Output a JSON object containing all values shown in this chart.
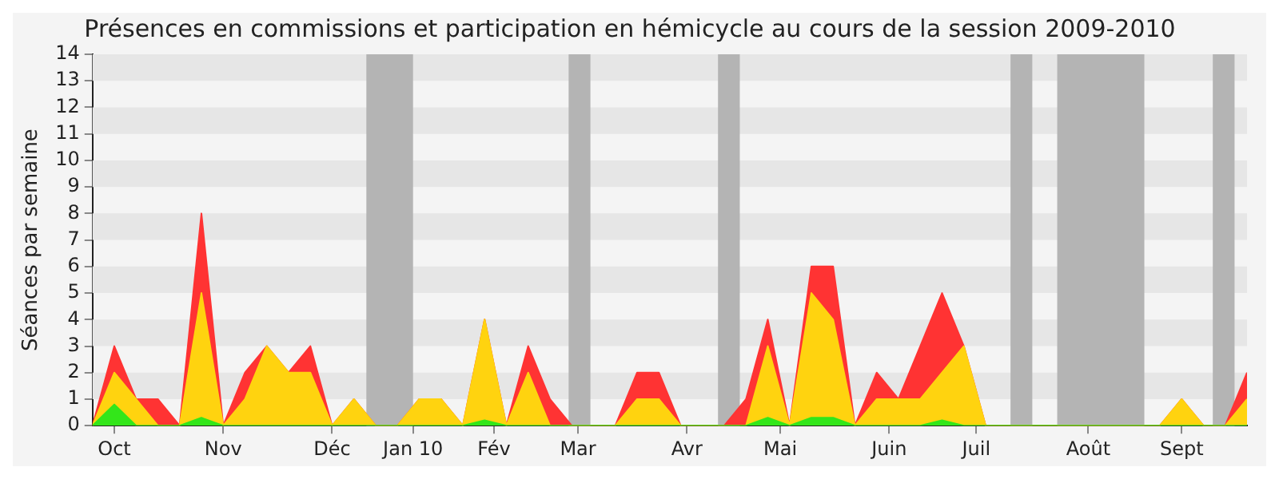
{
  "chart_data": {
    "type": "area",
    "stacked": true,
    "title": "Présences en commissions et participation en hémicycle au cours de la session 2009-2010",
    "ylabel": "Séances par semaine",
    "x": [
      "2009-09-28",
      "2009-10-05",
      "2009-10-12",
      "2009-10-19",
      "2009-10-26",
      "2009-11-02",
      "2009-11-09",
      "2009-11-16",
      "2009-11-23",
      "2009-11-30",
      "2009-12-07",
      "2009-12-14",
      "2009-12-21",
      "2009-12-28",
      "2010-01-04",
      "2010-01-11",
      "2010-01-18",
      "2010-01-25",
      "2010-02-01",
      "2010-02-08",
      "2010-02-15",
      "2010-02-22",
      "2010-03-01",
      "2010-03-08",
      "2010-03-15",
      "2010-03-22",
      "2010-03-29",
      "2010-04-05",
      "2010-04-12",
      "2010-04-19",
      "2010-04-26",
      "2010-05-03",
      "2010-05-10",
      "2010-05-17",
      "2010-05-24",
      "2010-05-31",
      "2010-06-07",
      "2010-06-14",
      "2010-06-21",
      "2010-06-28",
      "2010-07-05",
      "2010-07-12",
      "2010-07-19",
      "2010-07-26",
      "2010-08-02",
      "2010-08-09",
      "2010-08-16",
      "2010-08-23",
      "2010-08-30",
      "2010-09-06",
      "2010-09-13",
      "2010-09-20",
      "2010-09-27",
      "2010-10-04"
    ],
    "series": [
      {
        "color": "#33e61a",
        "values": [
          0,
          0.8,
          0,
          0,
          0,
          0.3,
          0,
          0,
          0,
          0,
          0,
          0,
          0,
          0,
          0,
          0,
          0,
          0,
          0.2,
          0,
          0,
          0,
          0,
          0,
          0,
          0,
          0,
          0,
          0,
          0,
          0,
          0.3,
          0,
          0.3,
          0.3,
          0,
          0,
          0,
          0,
          0.2,
          0,
          0,
          0,
          0,
          0,
          0,
          0,
          0,
          0,
          0,
          0,
          0,
          0,
          0
        ]
      },
      {
        "color": "#ffd30f",
        "values": [
          0,
          1.2,
          1,
          0,
          0,
          4.7,
          0,
          1,
          3,
          2,
          2,
          0,
          1,
          0,
          0,
          1,
          1,
          0,
          3.8,
          0,
          2,
          0,
          0,
          0,
          0,
          1,
          1,
          0,
          0,
          0,
          0,
          2.7,
          0,
          4.7,
          3.7,
          0,
          1,
          1,
          1,
          1.8,
          3,
          0,
          0,
          0,
          0,
          0,
          0,
          0,
          0,
          0,
          1,
          0,
          0,
          1
        ]
      },
      {
        "color": "#ff3333",
        "values": [
          0,
          1,
          0,
          1,
          0,
          3,
          0,
          1,
          0,
          0,
          1,
          0,
          0,
          0,
          0,
          0,
          0,
          0,
          0,
          0,
          1,
          1,
          0,
          0,
          0,
          1,
          1,
          0,
          0,
          0,
          1,
          1,
          0,
          1,
          2,
          0,
          1,
          0,
          2,
          3,
          0,
          0,
          0,
          0,
          0,
          0,
          0,
          0,
          0,
          0,
          0,
          0,
          0,
          1
        ]
      }
    ],
    "xlim": [
      "2009-09-28",
      "2010-10-04"
    ],
    "xticks": [
      {
        "value": "2009-10-05",
        "label": "Oct"
      },
      {
        "value": "2009-11-09",
        "label": "Nov"
      },
      {
        "value": "2009-12-14",
        "label": "Déc"
      },
      {
        "value": "2010-01-09",
        "label": "Jan 10"
      },
      {
        "value": "2010-02-04",
        "label": "Fév"
      },
      {
        "value": "2010-03-03",
        "label": "Mar"
      },
      {
        "value": "2010-04-07",
        "label": "Avr"
      },
      {
        "value": "2010-05-07",
        "label": "Mai"
      },
      {
        "value": "2010-06-11",
        "label": "Juin"
      },
      {
        "value": "2010-07-09",
        "label": "Juil"
      },
      {
        "value": "2010-08-14",
        "label": "Août"
      },
      {
        "value": "2010-09-13",
        "label": "Sept"
      }
    ],
    "ylim": [
      0,
      14
    ],
    "yticks": [
      0,
      1,
      2,
      3,
      4,
      5,
      6,
      7,
      8,
      9,
      10,
      11,
      12,
      13,
      14
    ],
    "bands": [
      {
        "axis": "y",
        "from": 1,
        "to": 2,
        "color": "#e6e6e6"
      },
      {
        "axis": "y",
        "from": 3,
        "to": 4,
        "color": "#e6e6e6"
      },
      {
        "axis": "y",
        "from": 5,
        "to": 6,
        "color": "#e6e6e6"
      },
      {
        "axis": "y",
        "from": 7,
        "to": 8,
        "color": "#e6e6e6"
      },
      {
        "axis": "y",
        "from": 9,
        "to": 10,
        "color": "#e6e6e6"
      },
      {
        "axis": "y",
        "from": 11,
        "to": 12,
        "color": "#e6e6e6"
      },
      {
        "axis": "y",
        "from": 13,
        "to": 14,
        "color": "#e6e6e6"
      },
      {
        "axis": "x",
        "from": "2009-12-25",
        "to": "2010-01-09",
        "color": "#b4b4b4"
      },
      {
        "axis": "x",
        "from": "2010-02-28",
        "to": "2010-03-07",
        "color": "#b4b4b4"
      },
      {
        "axis": "x",
        "from": "2010-04-17",
        "to": "2010-04-24",
        "color": "#b4b4b4"
      },
      {
        "axis": "x",
        "from": "2010-07-20",
        "to": "2010-07-27",
        "color": "#b4b4b4"
      },
      {
        "axis": "x",
        "from": "2010-08-04",
        "to": "2010-09-01",
        "color": "#b4b4b4"
      },
      {
        "axis": "x",
        "from": "2010-09-23",
        "to": "2010-09-30",
        "color": "#b4b4b4"
      }
    ],
    "legend": false
  }
}
